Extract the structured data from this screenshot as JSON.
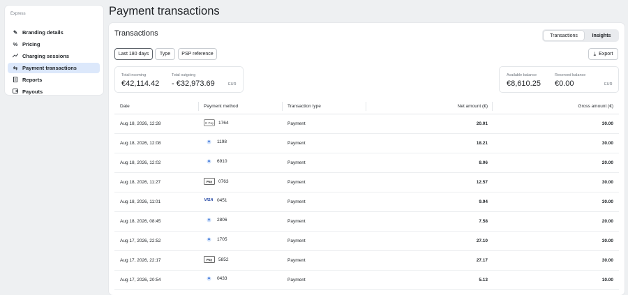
{
  "sidebar": {
    "section": "Express",
    "items": [
      {
        "label": "Branding details",
        "icon": "pencil-icon"
      },
      {
        "label": "Pricing",
        "icon": "percent-icon"
      },
      {
        "label": "Charging sessions",
        "icon": "chart-line-icon"
      },
      {
        "label": "Payment transactions",
        "icon": "arrows-swap-icon"
      },
      {
        "label": "Reports",
        "icon": "document-icon"
      },
      {
        "label": "Payouts",
        "icon": "wallet-icon"
      }
    ]
  },
  "page": {
    "title": "Payment transactions"
  },
  "panel": {
    "title": "Transactions",
    "tabs": {
      "transactions": "Transactions",
      "insights": "Insights"
    },
    "filters": {
      "period": "Last 180 days",
      "type": "Type",
      "psp": "PSP reference"
    },
    "export": "Export"
  },
  "summary": {
    "total_incoming_label": "Total incoming",
    "total_incoming": "€42,114.42",
    "total_outgoing_label": "Total outgoing",
    "total_outgoing": "- €32,973.69",
    "currency": "EUR",
    "available_label": "Available balance",
    "available": "€8,610.25",
    "reserved_label": "Reserved balance",
    "reserved": "€0.00"
  },
  "table": {
    "headers": {
      "date": "Date",
      "method": "Payment method",
      "type": "Transaction type",
      "net": "Net amount (€)",
      "gross": "Gross amount (€)"
    },
    "rows": [
      {
        "date": "Aug 18, 2026, 12:28",
        "method_icon": "gpay",
        "method_badge": "G Pay",
        "last4": "1764",
        "type": "Payment",
        "net": "20.01",
        "gross": "30.00"
      },
      {
        "date": "Aug 18, 2026, 12:08",
        "method_icon": "generic",
        "method_badge": "",
        "last4": "1198",
        "type": "Payment",
        "net": "18.21",
        "gross": "30.00"
      },
      {
        "date": "Aug 18, 2026, 12:02",
        "method_icon": "generic",
        "method_badge": "",
        "last4": "6910",
        "type": "Payment",
        "net": "8.06",
        "gross": "20.00"
      },
      {
        "date": "Aug 18, 2026, 11:27",
        "method_icon": "applepay",
        "method_badge": "Pay",
        "last4": "0763",
        "type": "Payment",
        "net": "12.57",
        "gross": "30.00"
      },
      {
        "date": "Aug 18, 2026, 11:01",
        "method_icon": "visa",
        "method_badge": "VISA",
        "last4": "0451",
        "type": "Payment",
        "net": "9.94",
        "gross": "30.00"
      },
      {
        "date": "Aug 18, 2026, 08:45",
        "method_icon": "generic",
        "method_badge": "",
        "last4": "2806",
        "type": "Payment",
        "net": "7.58",
        "gross": "20.00"
      },
      {
        "date": "Aug 17, 2026, 22:52",
        "method_icon": "generic",
        "method_badge": "",
        "last4": "1705",
        "type": "Payment",
        "net": "27.10",
        "gross": "30.00"
      },
      {
        "date": "Aug 17, 2026, 22:17",
        "method_icon": "applepay",
        "method_badge": "Pay",
        "last4": "5852",
        "type": "Payment",
        "net": "27.17",
        "gross": "30.00"
      },
      {
        "date": "Aug 17, 2026, 20:54",
        "method_icon": "generic",
        "method_badge": "",
        "last4": "0433",
        "type": "Payment",
        "net": "5.13",
        "gross": "10.00"
      }
    ]
  }
}
